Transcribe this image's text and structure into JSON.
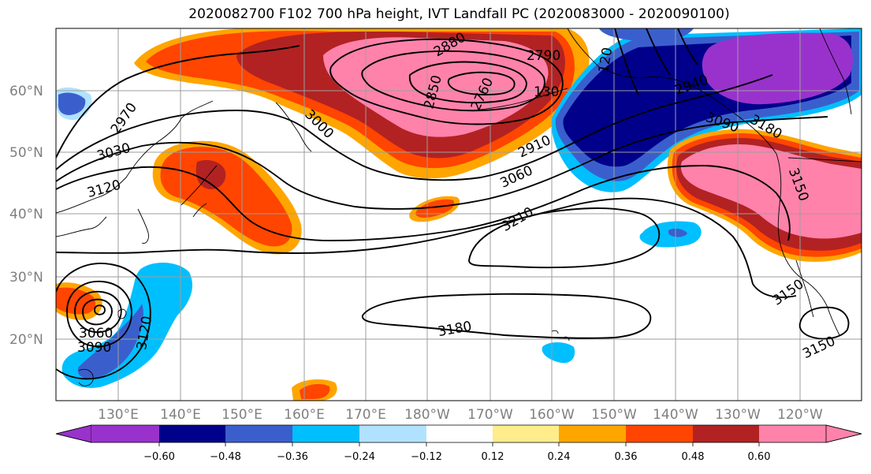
{
  "title": "2020082700 F102 700 hPa height, IVT Landfall PC (2020083000 - 2020090100)",
  "map": {
    "lat_labels": [
      "60°N",
      "50°N",
      "40°N",
      "30°N",
      "20°N"
    ],
    "lon_labels": [
      "130°E",
      "140°E",
      "150°E",
      "160°E",
      "170°E",
      "180°W",
      "170°W",
      "160°W",
      "150°W",
      "140°W",
      "130°W",
      "120°W"
    ],
    "contour_labels": [
      "2880",
      "2790",
      "2850",
      "2760",
      "130",
      "120",
      "2970",
      "3030",
      "3120",
      "3000",
      "2910",
      "3060",
      "3210",
      "2940",
      "3090",
      "3180",
      "3150",
      "3150",
      "3060",
      "3090",
      "3120",
      "3150",
      "3180"
    ]
  },
  "colorbar": {
    "tick_labels": [
      "−0.60",
      "−0.48",
      "−0.36",
      "−0.24",
      "−0.12",
      "0.12",
      "0.24",
      "0.36",
      "0.48",
      "0.60"
    ],
    "colors": [
      "#9932cc",
      "#00008b",
      "#3a5fcd",
      "#00bfff",
      "#b0e2ff",
      "#ffffff",
      "#ffec8b",
      "#ffa500",
      "#ff4500",
      "#b22222",
      "#ff82ab"
    ]
  },
  "fill_colors": {
    "pink": "#ff82ab",
    "darkred": "#b22222",
    "orangered": "#ff4500",
    "orange": "#ffa500",
    "yellow": "#ffec8b",
    "purple": "#9932cc",
    "navy": "#00008b",
    "royal": "#3a5fcd",
    "sky": "#00bfff",
    "paleblue": "#b0e2ff"
  }
}
